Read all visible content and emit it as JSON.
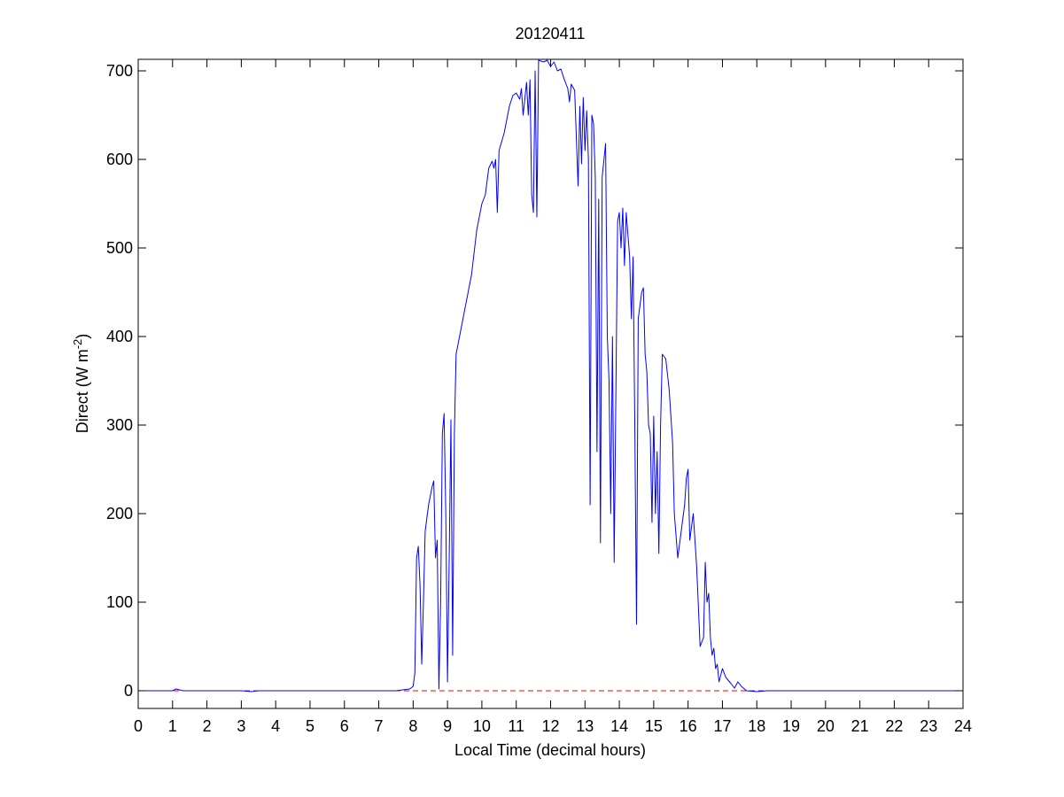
{
  "chart_data": {
    "type": "line",
    "title": "20120411",
    "xlabel": "Local Time (decimal hours)",
    "ylabel_parts": [
      "Direct (W m",
      "-2",
      ")"
    ],
    "xlim": [
      0,
      24
    ],
    "xticks": [
      0,
      1,
      2,
      3,
      4,
      5,
      6,
      7,
      8,
      9,
      10,
      11,
      12,
      13,
      14,
      15,
      16,
      17,
      18,
      19,
      20,
      21,
      22,
      23,
      24
    ],
    "ylim": [
      -20,
      713
    ],
    "yticks": [
      0,
      100,
      200,
      300,
      400,
      500,
      600,
      700
    ],
    "grid": false,
    "reference_line": {
      "value": 0,
      "color": "#ff0000",
      "style": "dashed"
    },
    "x": [
      0,
      1,
      1.1,
      1.3,
      3,
      3.3,
      3.5,
      7.5,
      7.9,
      8.0,
      8.05,
      8.1,
      8.15,
      8.2,
      8.25,
      8.3,
      8.35,
      8.45,
      8.55,
      8.6,
      8.65,
      8.7,
      8.75,
      8.8,
      8.85,
      8.9,
      8.95,
      9.0,
      9.05,
      9.1,
      9.15,
      9.2,
      9.25,
      9.35,
      9.5,
      9.7,
      9.85,
      10.0,
      10.1,
      10.2,
      10.3,
      10.35,
      10.4,
      10.45,
      10.5,
      10.65,
      10.8,
      10.9,
      11.0,
      11.1,
      11.15,
      11.2,
      11.3,
      11.35,
      11.4,
      11.45,
      11.5,
      11.55,
      11.6,
      11.65,
      11.8,
      11.9,
      12.0,
      12.1,
      12.2,
      12.3,
      12.4,
      12.5,
      12.55,
      12.6,
      12.7,
      12.8,
      12.85,
      12.9,
      12.95,
      13.0,
      13.05,
      13.1,
      13.15,
      13.2,
      13.25,
      13.3,
      13.35,
      13.4,
      13.45,
      13.5,
      13.6,
      13.65,
      13.7,
      13.75,
      13.8,
      13.85,
      13.95,
      14.0,
      14.05,
      14.1,
      14.15,
      14.2,
      14.3,
      14.35,
      14.4,
      14.45,
      14.5,
      14.55,
      14.65,
      14.7,
      14.75,
      14.8,
      14.85,
      14.9,
      14.95,
      15.0,
      15.05,
      15.1,
      15.15,
      15.2,
      15.25,
      15.35,
      15.45,
      15.55,
      15.6,
      15.7,
      15.8,
      15.9,
      15.95,
      16.0,
      16.05,
      16.15,
      16.25,
      16.35,
      16.45,
      16.5,
      16.55,
      16.6,
      16.65,
      16.7,
      16.75,
      16.8,
      16.85,
      16.9,
      17.0,
      17.1,
      17.25,
      17.35,
      17.45,
      17.55,
      17.7,
      18.0,
      18.3,
      24
    ],
    "series": [
      {
        "color": "#0000ff",
        "values": [
          0,
          0,
          2,
          0,
          0,
          -1,
          0,
          0,
          2,
          5,
          20,
          150,
          163,
          120,
          30,
          100,
          180,
          210,
          230,
          237,
          150,
          170,
          2,
          100,
          290,
          313,
          200,
          10,
          150,
          306,
          40,
          290,
          380,
          400,
          430,
          470,
          520,
          550,
          560,
          590,
          598,
          590,
          600,
          540,
          610,
          630,
          660,
          672,
          675,
          668,
          680,
          650,
          687,
          650,
          690,
          560,
          540,
          700,
          535,
          712,
          710,
          712,
          705,
          710,
          700,
          702,
          690,
          680,
          665,
          685,
          678,
          570,
          660,
          595,
          670,
          610,
          655,
          600,
          210,
          650,
          640,
          580,
          270,
          555,
          167,
          580,
          618,
          400,
          350,
          200,
          400,
          145,
          530,
          540,
          500,
          545,
          480,
          540,
          490,
          420,
          490,
          300,
          75,
          420,
          450,
          455,
          380,
          360,
          300,
          290,
          190,
          310,
          200,
          270,
          155,
          300,
          380,
          375,
          340,
          280,
          200,
          150,
          180,
          210,
          240,
          250,
          170,
          200,
          140,
          50,
          60,
          145,
          100,
          110,
          60,
          40,
          48,
          25,
          30,
          10,
          25,
          15,
          8,
          3,
          10,
          5,
          0,
          -1,
          0,
          0
        ]
      }
    ]
  }
}
